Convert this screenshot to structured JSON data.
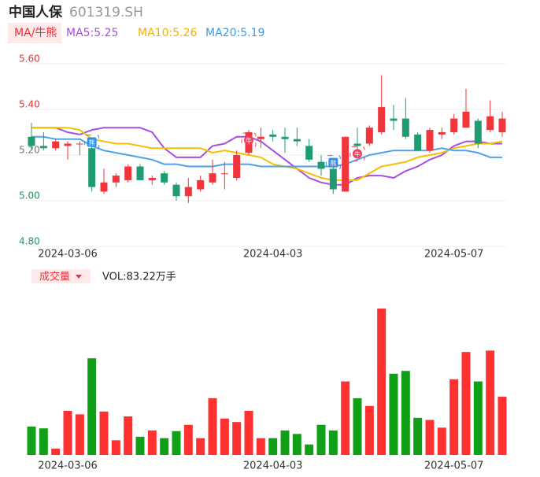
{
  "header": {
    "name": "中国人保",
    "code": "601319.SH"
  },
  "legend": {
    "mode": "MA/牛熊",
    "ma5": "MA5:5.25",
    "ma10": "MA10:5.26",
    "ma20": "MA20:5.19"
  },
  "chart_data": {
    "type": "candlestick",
    "categories": [
      null,
      null,
      null,
      "2024-03-06",
      null,
      null,
      null,
      null,
      null,
      null,
      null,
      null,
      null,
      null,
      null,
      null,
      null,
      null,
      null,
      null,
      "2024-04-03",
      null,
      null,
      null,
      null,
      null,
      null,
      null,
      null,
      null,
      null,
      null,
      null,
      null,
      null,
      "2024-05-07",
      null,
      null,
      null,
      null
    ],
    "open": [
      5.28,
      5.24,
      5.23,
      5.24,
      5.25,
      5.23,
      5.04,
      5.08,
      5.09,
      5.15,
      5.09,
      5.12,
      5.07,
      5.02,
      5.05,
      5.08,
      5.12,
      5.1,
      5.21,
      5.27,
      5.29,
      5.28,
      5.27,
      5.24,
      5.17,
      5.14,
      5.04,
      5.25,
      5.25,
      5.3,
      5.36,
      5.36,
      5.29,
      5.22,
      5.29,
      5.3,
      5.32,
      5.35,
      5.31,
      5.3
    ],
    "high": [
      5.34,
      5.3,
      5.27,
      5.26,
      5.26,
      5.25,
      5.14,
      5.12,
      5.16,
      5.16,
      5.11,
      5.13,
      5.08,
      5.1,
      5.11,
      5.18,
      5.17,
      5.22,
      5.31,
      5.32,
      5.31,
      5.32,
      5.32,
      5.27,
      5.2,
      5.16,
      5.28,
      5.32,
      5.33,
      5.55,
      5.42,
      5.45,
      5.3,
      5.32,
      5.32,
      5.38,
      5.49,
      5.36,
      5.44,
      5.39
    ],
    "low": [
      5.22,
      5.22,
      5.22,
      5.18,
      5.2,
      5.04,
      5.03,
      5.06,
      5.08,
      5.09,
      5.07,
      5.07,
      5.0,
      4.99,
      5.04,
      5.07,
      5.05,
      5.09,
      5.2,
      5.23,
      5.26,
      5.21,
      5.24,
      5.17,
      5.11,
      5.03,
      5.04,
      5.19,
      5.24,
      5.29,
      5.31,
      5.27,
      5.22,
      5.21,
      5.27,
      5.29,
      5.32,
      5.23,
      5.3,
      5.28
    ],
    "close": [
      5.24,
      5.23,
      5.26,
      5.25,
      5.25,
      5.06,
      5.08,
      5.11,
      5.15,
      5.09,
      5.1,
      5.08,
      5.02,
      5.06,
      5.09,
      5.12,
      5.12,
      5.2,
      5.3,
      5.28,
      5.28,
      5.27,
      5.26,
      5.18,
      5.14,
      5.05,
      5.28,
      5.24,
      5.32,
      5.41,
      5.35,
      5.28,
      5.22,
      5.31,
      5.3,
      5.36,
      5.39,
      5.25,
      5.37,
      5.36
    ],
    "up_color": "#f0353b",
    "down_color": "#1f9b72",
    "series": [
      {
        "name": "MA5",
        "color": "#a64ee0",
        "values": [
          5.32,
          5.32,
          5.32,
          5.3,
          5.29,
          5.31,
          5.32,
          5.32,
          5.32,
          5.32,
          5.3,
          5.23,
          5.19,
          5.19,
          5.19,
          5.24,
          5.25,
          5.28,
          5.28,
          5.26,
          5.22,
          5.18,
          5.14,
          5.1,
          5.08,
          5.07,
          5.07,
          5.1,
          5.11,
          5.11,
          5.1,
          5.13,
          5.15,
          5.18,
          5.2,
          5.24,
          5.26,
          5.26,
          5.25,
          5.25
        ]
      },
      {
        "name": "MA10",
        "color": "#f5c000",
        "values": [
          5.32,
          5.32,
          5.32,
          5.32,
          5.31,
          5.27,
          5.26,
          5.25,
          5.25,
          5.24,
          5.23,
          5.23,
          5.23,
          5.23,
          5.23,
          5.21,
          5.22,
          5.21,
          5.2,
          5.19,
          5.16,
          5.15,
          5.14,
          5.12,
          5.1,
          5.09,
          5.09,
          5.09,
          5.12,
          5.15,
          5.16,
          5.17,
          5.19,
          5.2,
          5.21,
          5.23,
          5.24,
          5.25,
          5.25,
          5.26
        ]
      },
      {
        "name": "MA20",
        "color": "#4ea2ea",
        "values": [
          5.28,
          5.28,
          5.27,
          5.27,
          5.27,
          5.24,
          5.22,
          5.21,
          5.2,
          5.19,
          5.18,
          5.16,
          5.16,
          5.15,
          5.15,
          5.15,
          5.16,
          5.16,
          5.16,
          5.15,
          5.15,
          5.15,
          5.15,
          5.15,
          5.15,
          5.15,
          5.16,
          5.18,
          5.2,
          5.21,
          5.22,
          5.22,
          5.22,
          5.22,
          5.23,
          5.22,
          5.22,
          5.21,
          5.19,
          5.19
        ]
      }
    ],
    "annotations": [
      {
        "index": 5,
        "label": "熊",
        "color": "#2f8ff0"
      },
      {
        "index": 18,
        "label": "牛",
        "color": "#f04060"
      },
      {
        "index": 25,
        "label": "熊",
        "color": "#2f8ff0"
      },
      {
        "index": 27,
        "label": "牛",
        "color": "#f04060"
      }
    ],
    "ylim": [
      4.8,
      5.6
    ],
    "yticks": [
      {
        "value": 4.8,
        "label": "4.80"
      },
      {
        "value": 5.0,
        "label": "5.00"
      },
      {
        "value": 5.2,
        "label": "5.20"
      },
      {
        "value": 5.4,
        "label": "5.40"
      },
      {
        "value": 5.6,
        "label": "5.60"
      }
    ],
    "grid": true,
    "volume": {
      "title": "成交量",
      "summary": "VOL:83.22万手",
      "up_color": "#ff3030",
      "down_color": "#10a018",
      "values": [
        40.5,
        38,
        9,
        63,
        58,
        138,
        62,
        21,
        55,
        26,
        35,
        24,
        34,
        43,
        24,
        81,
        52,
        47,
        63,
        24,
        24,
        35,
        30,
        15,
        43,
        35,
        105,
        81,
        70,
        209,
        116,
        120,
        53,
        50,
        39,
        108,
        147,
        105,
        149,
        83.22
      ]
    }
  }
}
